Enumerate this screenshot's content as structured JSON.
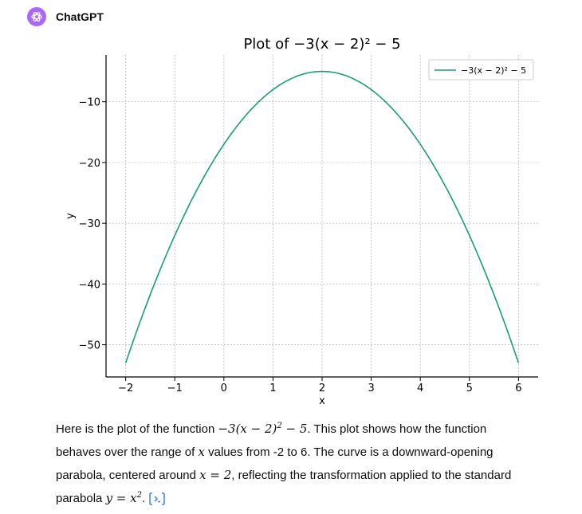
{
  "header": {
    "author": "ChatGPT"
  },
  "colors": {
    "accent": "#ab68ff",
    "curve": "#1a9e77",
    "axis": "#000000",
    "grid": "#b0b0b0",
    "link": "#3b82f6"
  },
  "chart_data": {
    "type": "line",
    "title": "Plot of −3(x − 2)² − 5",
    "xlabel": "x",
    "ylabel": "y",
    "xlim": [
      -2.4,
      6.4
    ],
    "ylim": [
      -55.3,
      -2.3
    ],
    "xticks": [
      -2,
      -1,
      0,
      1,
      2,
      3,
      4,
      5,
      6
    ],
    "yticks": [
      -10,
      -20,
      -30,
      -40,
      -50
    ],
    "xtick_labels": [
      "−2",
      "−1",
      "0",
      "1",
      "2",
      "3",
      "4",
      "5",
      "6"
    ],
    "ytick_labels": [
      "−10",
      "−20",
      "−30",
      "−40",
      "−50"
    ],
    "grid": true,
    "legend_position": "top-right",
    "series": [
      {
        "name": "−3(x − 2)² − 5",
        "color": "#1a9e77",
        "x": [
          -2,
          -1.5,
          -1,
          -0.5,
          0,
          0.5,
          1,
          1.5,
          2,
          2.5,
          3,
          3.5,
          4,
          4.5,
          5,
          5.5,
          6
        ],
        "y": [
          -53,
          -41.75,
          -32,
          -23.75,
          -17,
          -11.75,
          -8,
          -5.75,
          -5,
          -5.75,
          -8,
          -11.75,
          -17,
          -23.75,
          -32,
          -41.75,
          -53
        ]
      }
    ]
  },
  "message": {
    "p1": "Here is the plot of the function ",
    "m1": "−3(x − 2)",
    "m1_sup": "2",
    "m1_tail": " − 5",
    "p2": ". This plot shows how the function behaves over the range of ",
    "m2": "x",
    "p3": " values from -2 to 6. The curve is a downward-opening parabola, centered around ",
    "m3": "x = 2",
    "p4": ", reflecting the transformation applied to the standard parabola ",
    "m4": "y = x",
    "m4_sup": "2",
    "p5": "."
  },
  "code_button_icon": "code-interpreter-icon"
}
